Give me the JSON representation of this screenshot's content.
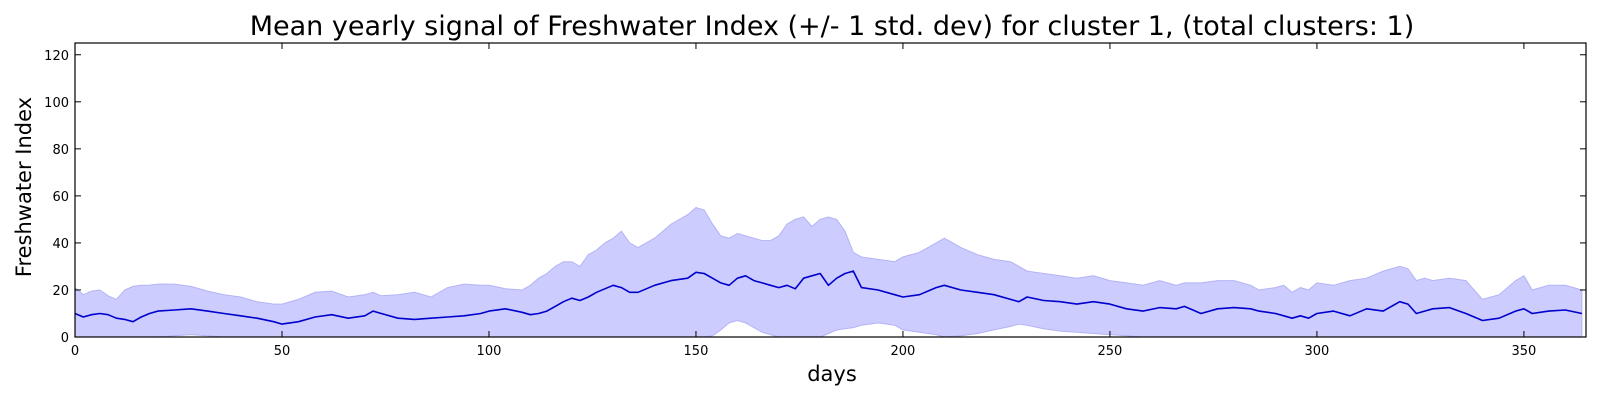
{
  "chart_data": {
    "type": "area",
    "title": "Mean yearly signal of Freshwater Index (+/- 1 std. dev) for cluster 1, (total clusters: 1)",
    "xlabel": "days",
    "ylabel": "Freshwater Index",
    "xlim": [
      0,
      365
    ],
    "ylim": [
      0,
      125
    ],
    "xticks": [
      0,
      50,
      100,
      150,
      200,
      250,
      300,
      350
    ],
    "yticks": [
      0,
      20,
      40,
      60,
      80,
      100,
      120
    ],
    "grid": false,
    "legend": "none",
    "colors": {
      "mean": "#0000cc",
      "band": "#ccccff",
      "band_edge": "#b3b3f5"
    },
    "series": [
      {
        "values_x": [
          0,
          2,
          4,
          6,
          8,
          10,
          12,
          14,
          16,
          18,
          20,
          24,
          28,
          32,
          36,
          40,
          44,
          48,
          50,
          54,
          58,
          62,
          66,
          70,
          72,
          74,
          78,
          82,
          86,
          90,
          94,
          98,
          100,
          104,
          108,
          110,
          112,
          114,
          116,
          118,
          120,
          122,
          124,
          126,
          128,
          130,
          132,
          134,
          136,
          140,
          144,
          148,
          150,
          152,
          154,
          156,
          158,
          160,
          162,
          164,
          166,
          168,
          170,
          172,
          174,
          176,
          178,
          180,
          182,
          184,
          186,
          188,
          190,
          194,
          198,
          200,
          204,
          208,
          210,
          214,
          218,
          222,
          226,
          228,
          230,
          234,
          238,
          242,
          246,
          250,
          254,
          258,
          262,
          266,
          268,
          272,
          276,
          280,
          284,
          286,
          290,
          292,
          294,
          296,
          298,
          300,
          304,
          308,
          312,
          316,
          320,
          322,
          324,
          326,
          328,
          332,
          336,
          340,
          344,
          348,
          350,
          352,
          356,
          360,
          364
        ],
        "mean": [
          10,
          8.5,
          9.5,
          10,
          9.5,
          8,
          7.5,
          6.5,
          8.5,
          10,
          11,
          11.5,
          12,
          11,
          10,
          9,
          8,
          6.5,
          5.5,
          6.5,
          8.5,
          9.5,
          8,
          9,
          11,
          10,
          8,
          7.5,
          8,
          8.5,
          9,
          10,
          11,
          12,
          10.5,
          9.5,
          10,
          11,
          13,
          15,
          16.5,
          15.5,
          17,
          19,
          20.5,
          22,
          21,
          19,
          19,
          22,
          24,
          25,
          27.5,
          27,
          25,
          23,
          22,
          25,
          26,
          24,
          23,
          22,
          21,
          22,
          20.5,
          25,
          26,
          27,
          22,
          25,
          27,
          28,
          21,
          20,
          18,
          17,
          18,
          21,
          22,
          20,
          19,
          18,
          16,
          15,
          17,
          15.5,
          15,
          14,
          15,
          14,
          12,
          11,
          12.5,
          12,
          13,
          10,
          12,
          12.5,
          12,
          11,
          10,
          9,
          8,
          9,
          8,
          10,
          11,
          9,
          12,
          11,
          15,
          14,
          10,
          11,
          12,
          12.5,
          10,
          7,
          8,
          11,
          12,
          10,
          11,
          11.5,
          10
        ],
        "upper": [
          21,
          18,
          19.5,
          20,
          17.5,
          16,
          20,
          21.5,
          22,
          22,
          22.5,
          22.5,
          21.5,
          19.5,
          18,
          17,
          15,
          14,
          14,
          16,
          19,
          19.5,
          17,
          18,
          19,
          17.5,
          18,
          19,
          17,
          21,
          22.5,
          22,
          22,
          20.5,
          20,
          22,
          25,
          27,
          30,
          32,
          32,
          30,
          35,
          37,
          40,
          42,
          45,
          40,
          38,
          42,
          48,
          52,
          55,
          54,
          48,
          43,
          42,
          44,
          43,
          42,
          41,
          41,
          43,
          48,
          50,
          51,
          47,
          50,
          51,
          50,
          45,
          36,
          34,
          33,
          32,
          34,
          36,
          40,
          42,
          38,
          35,
          33,
          32,
          30,
          28,
          27,
          26,
          25,
          26,
          24,
          23,
          22,
          24,
          22,
          23,
          23,
          24,
          24,
          22,
          20,
          21,
          22,
          19,
          21,
          20,
          23,
          22,
          24,
          25,
          28,
          30,
          29,
          24,
          25,
          24,
          25,
          24,
          16,
          18,
          24,
          26,
          20,
          22,
          22,
          20
        ],
        "lower": [
          0,
          0,
          0,
          0,
          0,
          0,
          0,
          0,
          0,
          0,
          0,
          0.5,
          1,
          0.5,
          0,
          0,
          0,
          0,
          0,
          0,
          0,
          0,
          0,
          0,
          0,
          0,
          0,
          0,
          0,
          0,
          0,
          0,
          0,
          0,
          0,
          0,
          0,
          0,
          0,
          0,
          0,
          0,
          0,
          0,
          0,
          0,
          0,
          0,
          0,
          0,
          0,
          0,
          0,
          0,
          0.5,
          3,
          6,
          7,
          6,
          4,
          2,
          1,
          0,
          0,
          0,
          0,
          0,
          0,
          1.5,
          3,
          3.5,
          4,
          5,
          6,
          5,
          3,
          2,
          1,
          0,
          0.5,
          1.5,
          3,
          4.5,
          5.5,
          5,
          3.5,
          2.5,
          2,
          1.5,
          1,
          0.5,
          0,
          0,
          0,
          0,
          0,
          0,
          0,
          0,
          0,
          0,
          0,
          0,
          0,
          0,
          0,
          0,
          0,
          0,
          0,
          0,
          0,
          0,
          0,
          0,
          0,
          0,
          0,
          0,
          0,
          0,
          0,
          0,
          0,
          0
        ]
      }
    ]
  }
}
